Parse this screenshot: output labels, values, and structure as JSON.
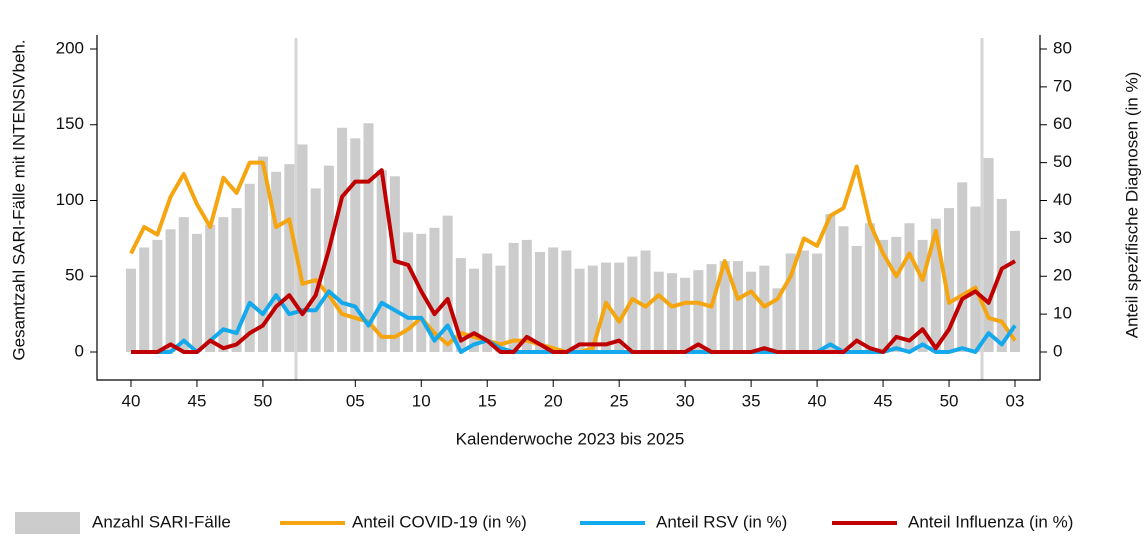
{
  "chart_data": {
    "type": "bar",
    "x_label": "Kalenderwoche 2023 bis 2025",
    "y_label": "Gesamtzahl SARI-Fälle mit INTENSIVbeh.",
    "y2_label": "Anteil spezifische Diagnosen (in %)",
    "categories": [
      "40",
      null,
      null,
      null,
      null,
      "45",
      null,
      null,
      null,
      null,
      "50",
      null,
      null,
      null,
      null,
      null,
      null,
      "05",
      null,
      null,
      null,
      null,
      "10",
      null,
      null,
      null,
      null,
      "15",
      null,
      null,
      null,
      null,
      "20",
      null,
      null,
      null,
      null,
      "25",
      null,
      null,
      null,
      null,
      "30",
      null,
      null,
      null,
      null,
      "35",
      null,
      null,
      null,
      null,
      "40",
      null,
      null,
      null,
      null,
      "45",
      null,
      null,
      null,
      null,
      "50",
      null,
      null,
      null,
      null,
      "03"
    ],
    "ylim": [
      0,
      200
    ],
    "yticks": [
      0,
      50,
      100,
      150,
      200
    ],
    "y2lim": [
      0,
      80
    ],
    "y2ticks": [
      0,
      10,
      20,
      30,
      40,
      50,
      60,
      70,
      80
    ],
    "series": [
      {
        "name": "Anzahl SARI-Fälle",
        "type": "bar",
        "color": "#cccccc",
        "values": [
          55,
          69,
          74,
          81,
          89,
          78,
          84,
          89,
          95,
          111,
          129,
          119,
          124,
          137,
          108,
          123,
          148,
          141,
          151,
          120,
          116,
          79,
          78,
          82,
          90,
          62,
          55,
          65,
          57,
          72,
          74,
          66,
          69,
          67,
          55,
          57,
          59,
          59,
          63,
          67,
          53,
          52,
          49,
          54,
          58,
          60,
          60,
          53,
          57,
          42,
          65,
          67,
          65,
          91,
          83,
          70,
          85,
          74,
          76,
          85,
          74,
          88,
          95,
          112,
          96,
          128,
          101,
          80
        ]
      },
      {
        "name": "Anteil COVID-19 (in %)",
        "type": "line",
        "axis": "y2",
        "color": "#f5a50f",
        "values": [
          26,
          33,
          31,
          41,
          47,
          39,
          33,
          46,
          42,
          50,
          50,
          33,
          35,
          18,
          19,
          15,
          10,
          9,
          8,
          4,
          4,
          6,
          9,
          5,
          2,
          5,
          4,
          3,
          2,
          3,
          3,
          2,
          1,
          0,
          0,
          1,
          13,
          8,
          14,
          12,
          15,
          12,
          13,
          13,
          12,
          24,
          14,
          16,
          12,
          14,
          20,
          30,
          28,
          36,
          38,
          49,
          34,
          26,
          20,
          26,
          19,
          32,
          13,
          15,
          17,
          9,
          8,
          3
        ]
      },
      {
        "name": "Anteil RSV (in %)",
        "type": "line",
        "axis": "y2",
        "color": "#14a9ec",
        "values": [
          0,
          0,
          0,
          0,
          3,
          0,
          3,
          6,
          5,
          13,
          10,
          15,
          10,
          11,
          11,
          16,
          13,
          12,
          7,
          13,
          11,
          9,
          9,
          3,
          7,
          0,
          2,
          3,
          1,
          0,
          0,
          0,
          0,
          0,
          0,
          0,
          0,
          0,
          0,
          0,
          0,
          0,
          0,
          0,
          0,
          0,
          0,
          0,
          0,
          0,
          0,
          0,
          0,
          2,
          0,
          0,
          0,
          0,
          1,
          0,
          2,
          0,
          0,
          1,
          0,
          5,
          2,
          7
        ]
      },
      {
        "name": "Anteil Influenza (in %)",
        "type": "line",
        "axis": "y2",
        "color": "#c00000",
        "values": [
          0,
          0,
          0,
          2,
          0,
          0,
          3,
          1,
          2,
          5,
          7,
          12,
          15,
          10,
          15,
          27,
          41,
          45,
          45,
          48,
          24,
          23,
          16,
          10,
          14,
          3,
          5,
          3,
          0,
          0,
          4,
          2,
          0,
          0,
          2,
          2,
          2,
          3,
          0,
          0,
          0,
          0,
          0,
          2,
          0,
          0,
          0,
          0,
          1,
          0,
          0,
          0,
          0,
          0,
          0,
          3,
          1,
          0,
          4,
          3,
          6,
          1,
          6,
          14,
          16,
          13,
          22,
          24
        ]
      }
    ]
  }
}
